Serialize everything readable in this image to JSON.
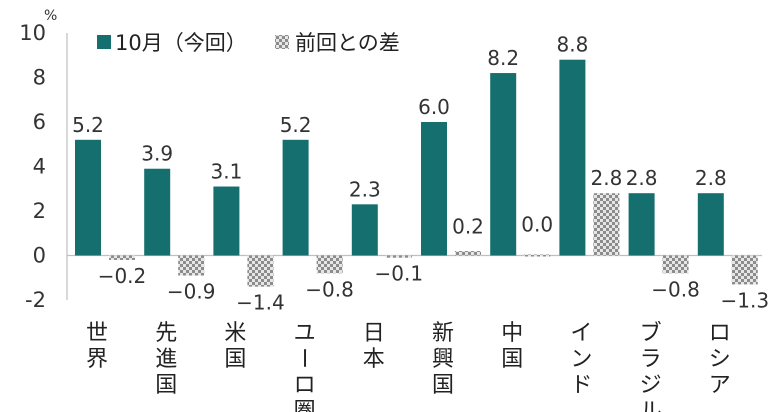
{
  "chart_data": {
    "type": "bar",
    "unit_label": "%",
    "ylim": [
      -2,
      10
    ],
    "yticks": [
      "10",
      "8",
      "6",
      "4",
      "2",
      "0",
      "-2"
    ],
    "categories": [
      "世界",
      "先進国",
      "米国",
      "ユーロ圏",
      "日本",
      "新興国",
      "中国",
      "インド",
      "ブラジル",
      "ロシア"
    ],
    "series": [
      {
        "name": "10月（今回）",
        "values": [
          5.2,
          3.9,
          3.1,
          5.2,
          2.3,
          6.0,
          8.2,
          8.8,
          2.8,
          2.8
        ],
        "labels": [
          "5.2",
          "3.9",
          "3.1",
          "5.2",
          "2.3",
          "6.0",
          "8.2",
          "8.8",
          "2.8",
          "2.8"
        ],
        "color": "#156f6f"
      },
      {
        "name": "前回との差",
        "values": [
          -0.2,
          -0.9,
          -1.4,
          -0.8,
          -0.1,
          0.2,
          0.0,
          2.8,
          -0.8,
          -1.3
        ],
        "labels": [
          "−0.2",
          "−0.9",
          "−1.4",
          "−0.8",
          "−0.1",
          "0.2",
          "0.0",
          "2.8",
          "−0.8",
          "−1.3"
        ],
        "color": "#9a9a9a",
        "pattern": "checker"
      }
    ],
    "grid": false,
    "legend": "top-left"
  }
}
